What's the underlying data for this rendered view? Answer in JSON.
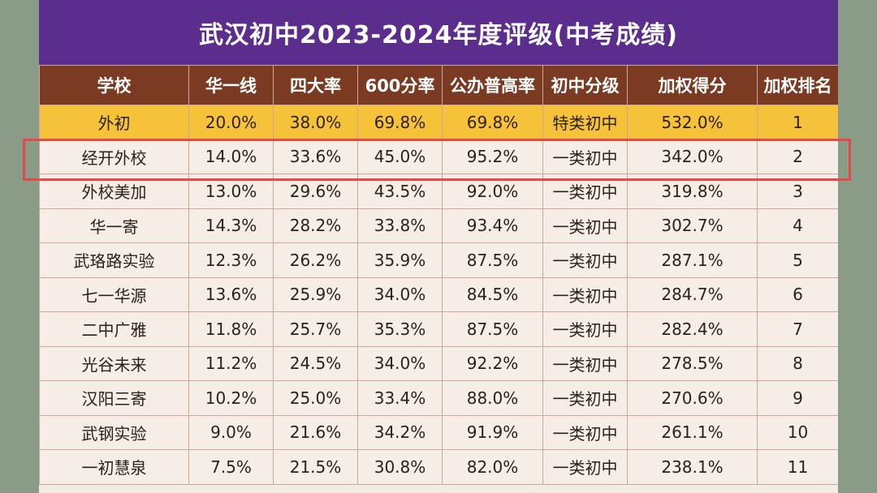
{
  "title": "武汉初中2023-2024年度评级(中考成绩)",
  "headers": [
    "学校",
    "华一线",
    "四大率",
    "600分率",
    "公办普高率",
    "初中分级",
    "加权得分",
    "加权排名"
  ],
  "rows": [
    [
      "外初",
      "20.0%",
      "38.0%",
      "69.8%",
      "69.8%",
      "特类初中",
      "532.0%",
      "1"
    ],
    [
      "经开外校",
      "14.0%",
      "33.6%",
      "45.0%",
      "95.2%",
      "一类初中",
      "342.0%",
      "2"
    ],
    [
      "外校美加",
      "13.0%",
      "29.6%",
      "43.5%",
      "92.0%",
      "一类初中",
      "319.8%",
      "3"
    ],
    [
      "华一寄",
      "14.3%",
      "28.2%",
      "33.8%",
      "93.4%",
      "一类初中",
      "302.7%",
      "4"
    ],
    [
      "武珞路实验",
      "12.3%",
      "26.2%",
      "35.9%",
      "87.5%",
      "一类初中",
      "287.1%",
      "5"
    ],
    [
      "七一华源",
      "13.6%",
      "25.9%",
      "34.0%",
      "84.5%",
      "一类初中",
      "284.7%",
      "6"
    ],
    [
      "二中广雅",
      "11.8%",
      "25.7%",
      "35.3%",
      "87.5%",
      "一类初中",
      "282.4%",
      "7"
    ],
    [
      "光谷未来",
      "11.2%",
      "24.5%",
      "34.0%",
      "92.2%",
      "一类初中",
      "278.5%",
      "8"
    ],
    [
      "汉阳三寄",
      "10.2%",
      "25.0%",
      "33.4%",
      "88.0%",
      "一类初中",
      "270.6%",
      "9"
    ],
    [
      "武钢实验",
      "9.0%",
      "21.6%",
      "34.2%",
      "91.9%",
      "一类初中",
      "261.1%",
      "10"
    ],
    [
      "一初慧泉",
      "7.5%",
      "21.5%",
      "30.8%",
      "82.0%",
      "一类初中",
      "238.1%",
      "11"
    ]
  ],
  "colors": {
    "title_bg": "#5b2d8c",
    "header_bg": "#7b3a22",
    "top_row_bg": "#f6c23a",
    "highlight": "#e8484a"
  }
}
